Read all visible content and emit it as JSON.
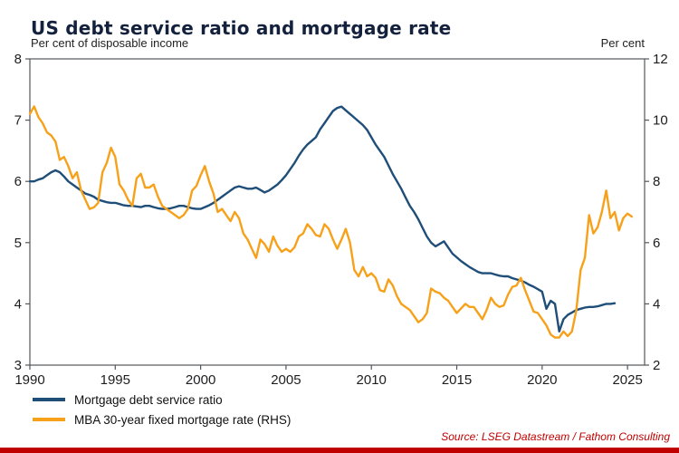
{
  "page": {
    "accent_color": "#C00000",
    "source_note": "Source: LSEG Datastream / Fathom Consulting"
  },
  "chart_data": {
    "type": "line",
    "title": "US debt service ratio and mortgage rate",
    "grid": false,
    "legend_position": "bottom-left",
    "left_axis": {
      "label": "Per cent of disposable income",
      "min": 3,
      "max": 8,
      "ticks": [
        3,
        4,
        5,
        6,
        7,
        8
      ]
    },
    "right_axis": {
      "label": "Per cent",
      "min": 2,
      "max": 12,
      "ticks": [
        2,
        4,
        6,
        8,
        10,
        12
      ]
    },
    "x_axis": {
      "min": 1990,
      "max": 2026,
      "ticks": [
        1990,
        1995,
        2000,
        2005,
        2010,
        2015,
        2020,
        2025
      ]
    },
    "series": [
      {
        "name": "Mortgage debt service ratio",
        "axis": "left",
        "color": "#1F4E79",
        "x_start": 1990,
        "x_step": 0.25,
        "values": [
          6.0,
          6.0,
          6.03,
          6.05,
          6.1,
          6.15,
          6.18,
          6.15,
          6.08,
          6.0,
          5.95,
          5.9,
          5.85,
          5.8,
          5.78,
          5.75,
          5.7,
          5.68,
          5.66,
          5.65,
          5.65,
          5.63,
          5.61,
          5.6,
          5.6,
          5.59,
          5.58,
          5.6,
          5.6,
          5.58,
          5.56,
          5.55,
          5.55,
          5.56,
          5.58,
          5.6,
          5.6,
          5.58,
          5.56,
          5.55,
          5.55,
          5.58,
          5.61,
          5.65,
          5.7,
          5.75,
          5.8,
          5.85,
          5.9,
          5.92,
          5.9,
          5.88,
          5.88,
          5.9,
          5.86,
          5.82,
          5.85,
          5.9,
          5.95,
          6.02,
          6.1,
          6.2,
          6.3,
          6.42,
          6.52,
          6.6,
          6.66,
          6.72,
          6.85,
          6.95,
          7.05,
          7.15,
          7.2,
          7.22,
          7.16,
          7.1,
          7.04,
          6.98,
          6.92,
          6.84,
          6.72,
          6.6,
          6.5,
          6.4,
          6.26,
          6.12,
          6.0,
          5.88,
          5.74,
          5.6,
          5.5,
          5.38,
          5.24,
          5.1,
          5.0,
          4.94,
          4.98,
          5.02,
          4.92,
          4.82,
          4.76,
          4.7,
          4.65,
          4.6,
          4.56,
          4.52,
          4.5,
          4.5,
          4.5,
          4.48,
          4.46,
          4.45,
          4.45,
          4.42,
          4.4,
          4.38,
          4.35,
          4.31,
          4.28,
          4.24,
          4.2,
          3.92,
          4.05,
          4.0,
          3.55,
          3.75,
          3.82,
          3.86,
          3.9,
          3.92,
          3.94,
          3.95,
          3.95,
          3.96,
          3.98,
          4.0,
          4.0,
          4.01
        ]
      },
      {
        "name": "MBA 30-year fixed mortgage rate (RHS)",
        "axis": "right",
        "color": "#F7A11A",
        "x_start": 1990,
        "x_step": 0.25,
        "values": [
          10.2,
          10.45,
          10.1,
          9.9,
          9.6,
          9.5,
          9.3,
          8.7,
          8.8,
          8.5,
          8.1,
          8.3,
          7.7,
          7.4,
          7.1,
          7.15,
          7.3,
          8.3,
          8.6,
          9.1,
          8.8,
          7.9,
          7.7,
          7.4,
          7.2,
          8.1,
          8.25,
          7.8,
          7.8,
          7.9,
          7.5,
          7.2,
          7.1,
          7.0,
          6.9,
          6.8,
          6.9,
          7.1,
          7.7,
          7.85,
          8.2,
          8.5,
          8.0,
          7.6,
          7.0,
          7.1,
          6.9,
          6.7,
          7.0,
          6.8,
          6.3,
          6.1,
          5.8,
          5.5,
          6.1,
          5.95,
          5.7,
          6.2,
          5.9,
          5.7,
          5.8,
          5.7,
          5.85,
          6.2,
          6.3,
          6.6,
          6.45,
          6.25,
          6.2,
          6.6,
          6.45,
          6.1,
          5.8,
          6.1,
          6.45,
          6.0,
          5.1,
          4.9,
          5.2,
          4.9,
          5.0,
          4.85,
          4.45,
          4.4,
          4.8,
          4.6,
          4.25,
          4.0,
          3.9,
          3.8,
          3.6,
          3.4,
          3.5,
          3.7,
          4.5,
          4.4,
          4.35,
          4.2,
          4.1,
          3.9,
          3.7,
          3.85,
          4.0,
          3.9,
          3.9,
          3.7,
          3.5,
          3.8,
          4.2,
          4.0,
          3.9,
          3.95,
          4.3,
          4.55,
          4.6,
          4.85,
          4.45,
          4.1,
          3.75,
          3.7,
          3.5,
          3.3,
          3.0,
          2.9,
          2.9,
          3.1,
          2.95,
          3.1,
          3.8,
          5.1,
          5.5,
          6.9,
          6.3,
          6.5,
          7.0,
          7.7,
          6.8,
          7.0,
          6.4,
          6.8,
          6.95,
          6.85
        ]
      }
    ],
    "source": "Source: LSEG Datastream / Fathom Consulting"
  }
}
